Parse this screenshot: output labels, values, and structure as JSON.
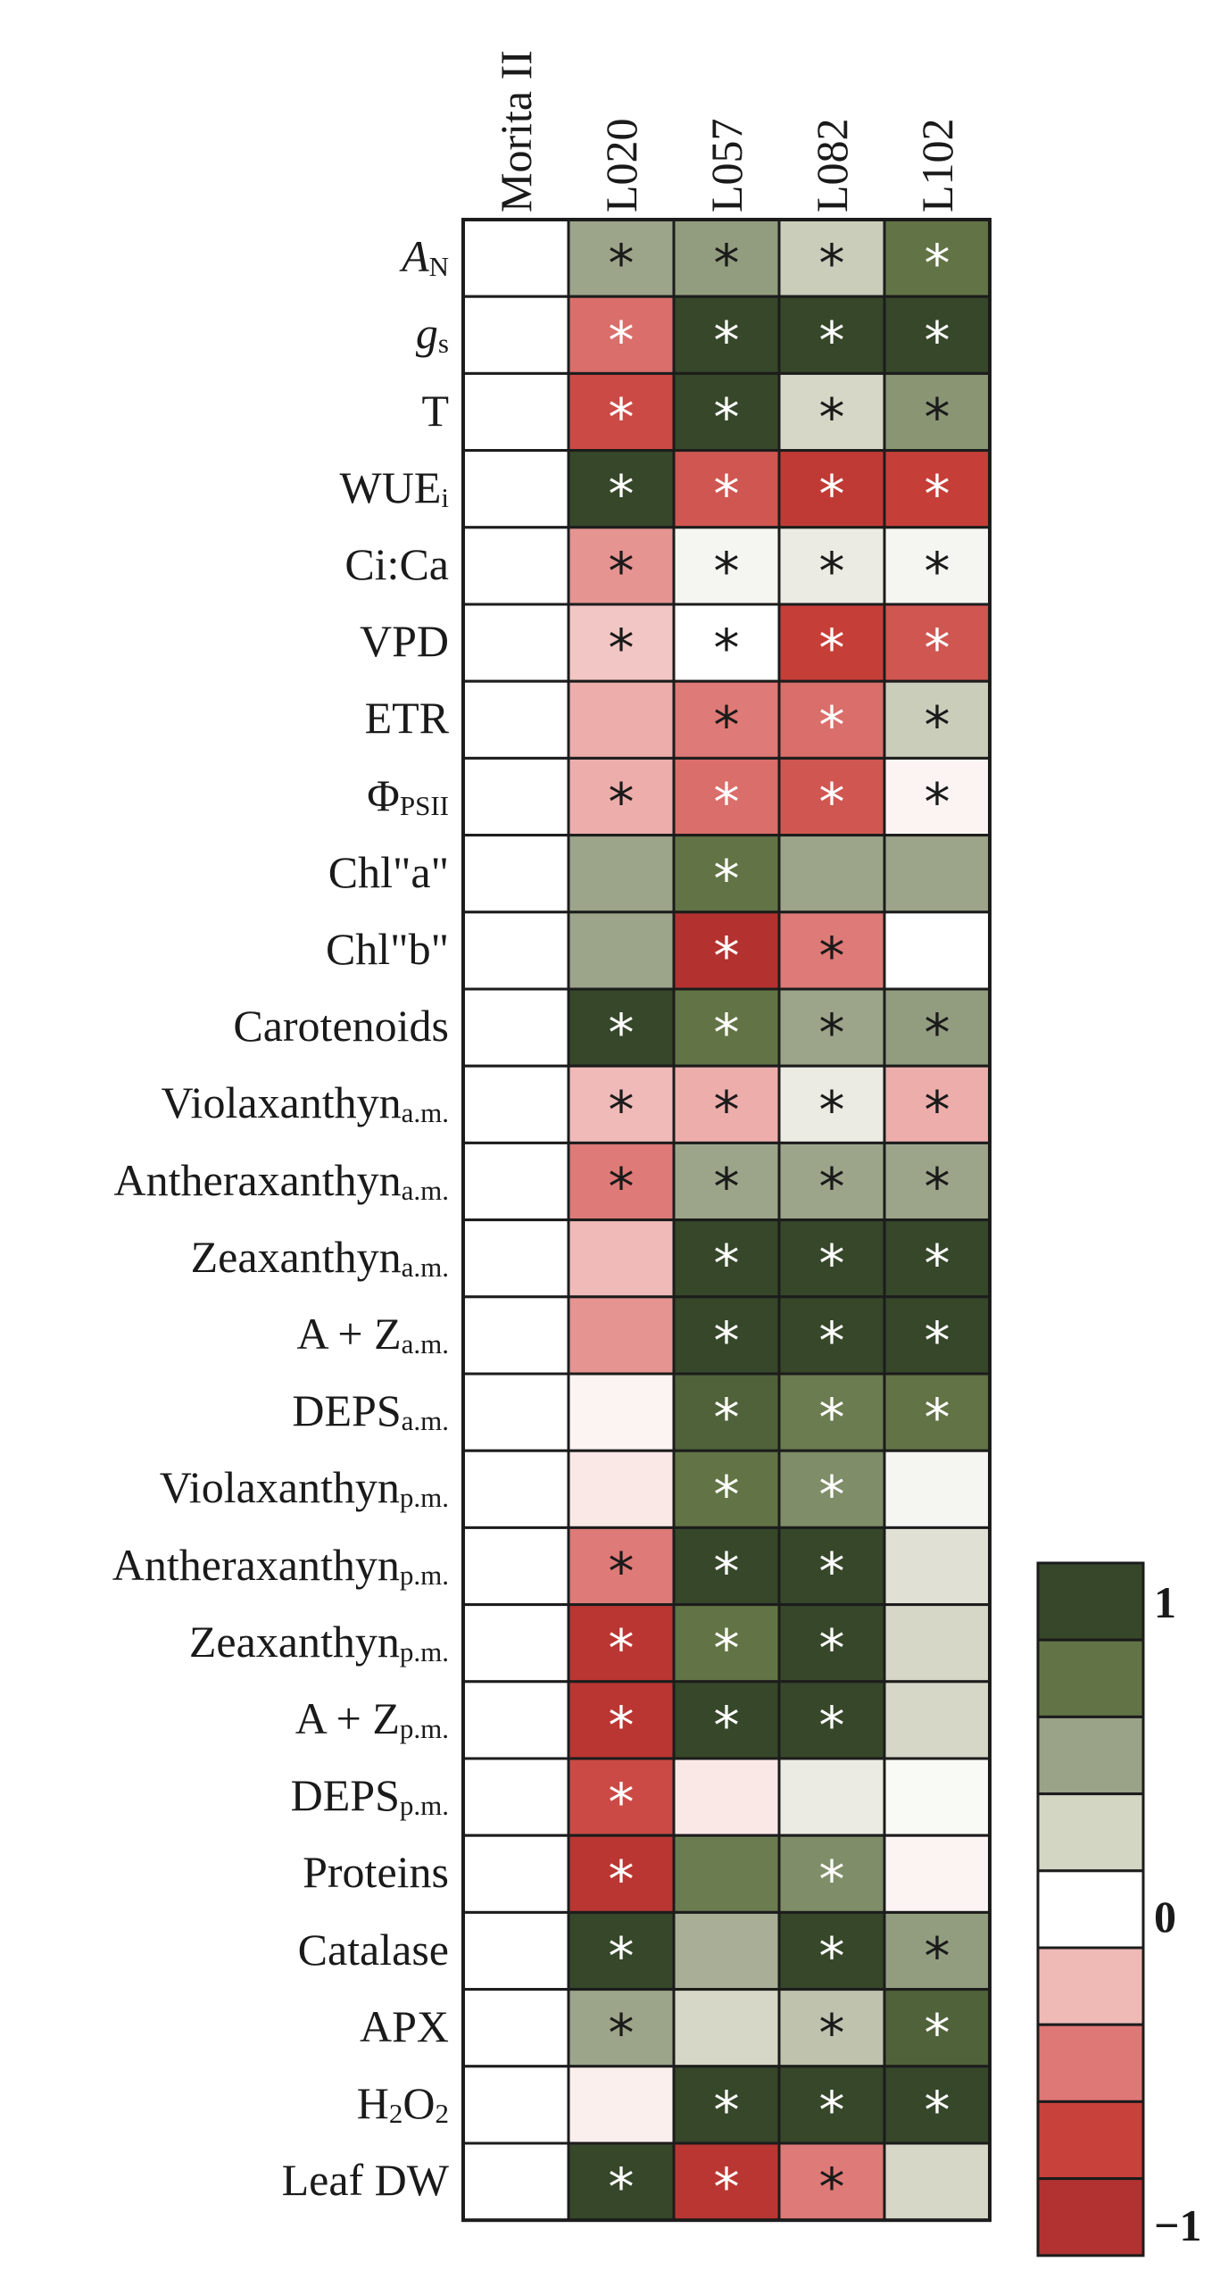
{
  "chart_data": {
    "type": "heatmap",
    "columns": [
      "Morita II",
      "L020",
      "L057",
      "L082",
      "L102"
    ],
    "rows": [
      {
        "label": "AN",
        "main": "A",
        "sub": "N",
        "italic": true,
        "values": [
          0,
          0.45,
          0.5,
          0.25,
          0.75
        ],
        "sig": [
          false,
          true,
          true,
          true,
          true
        ]
      },
      {
        "label": "gs",
        "main": "g",
        "sub": "s",
        "italic": true,
        "values": [
          0,
          -0.6,
          1.0,
          1.0,
          1.0
        ],
        "sig": [
          false,
          true,
          true,
          true,
          true
        ]
      },
      {
        "label": "T",
        "main": "T",
        "sub": "",
        "italic": false,
        "values": [
          0,
          -0.75,
          1.0,
          0.2,
          0.55
        ],
        "sig": [
          false,
          true,
          true,
          true,
          true
        ]
      },
      {
        "label": "WUEi",
        "main": "WUE",
        "sub": "i",
        "italic": false,
        "values": [
          0,
          1.0,
          -0.7,
          -0.85,
          -0.8
        ],
        "sig": [
          false,
          true,
          true,
          true,
          true
        ]
      },
      {
        "label": "Ci:Ca",
        "main": "Ci:Ca",
        "sub": "",
        "italic": false,
        "values": [
          0,
          -0.45,
          0.05,
          0.1,
          0.05
        ],
        "sig": [
          false,
          true,
          true,
          true,
          true
        ]
      },
      {
        "label": "VPD",
        "main": "VPD",
        "sub": "",
        "italic": false,
        "values": [
          0,
          -0.25,
          0,
          -0.8,
          -0.7
        ],
        "sig": [
          false,
          true,
          true,
          true,
          true
        ]
      },
      {
        "label": "ETR",
        "main": "ETR",
        "sub": "",
        "italic": false,
        "values": [
          0,
          -0.35,
          -0.55,
          -0.6,
          0.25
        ],
        "sig": [
          false,
          false,
          true,
          true,
          true
        ]
      },
      {
        "label": "ΦPSII",
        "main": "Φ",
        "sub": "PSII",
        "italic": false,
        "values": [
          0,
          -0.35,
          -0.6,
          -0.7,
          -0.05
        ],
        "sig": [
          false,
          true,
          true,
          true,
          true
        ]
      },
      {
        "label": "Chl\"a\"",
        "main": "Chl\"a\"",
        "sub": "",
        "italic": false,
        "values": [
          0,
          0.45,
          0.75,
          0.45,
          0.45
        ],
        "sig": [
          false,
          false,
          true,
          false,
          false
        ]
      },
      {
        "label": "Chl\"b\"",
        "main": "Chl\"b\"",
        "sub": "",
        "italic": false,
        "values": [
          0,
          0.45,
          -0.95,
          -0.55,
          0
        ],
        "sig": [
          false,
          false,
          true,
          true,
          false
        ]
      },
      {
        "label": "Carotenoids",
        "main": "Carotenoids",
        "sub": "",
        "italic": false,
        "values": [
          0,
          1.0,
          0.75,
          0.45,
          0.5
        ],
        "sig": [
          false,
          true,
          true,
          true,
          true
        ]
      },
      {
        "label": "Violaxanthyna.m.",
        "main": "Violaxanthyn",
        "sub": "a.m.",
        "italic": false,
        "values": [
          0,
          -0.3,
          -0.35,
          0.1,
          -0.35
        ],
        "sig": [
          false,
          true,
          true,
          true,
          true
        ]
      },
      {
        "label": "Antheraxanthyna.m.",
        "main": "Antheraxanthyn",
        "sub": "a.m.",
        "italic": false,
        "values": [
          0,
          -0.55,
          0.45,
          0.45,
          0.45
        ],
        "sig": [
          false,
          true,
          true,
          true,
          true
        ]
      },
      {
        "label": "Zeaxanthyna.m.",
        "main": "Zeaxanthyn",
        "sub": "a.m.",
        "italic": false,
        "values": [
          0,
          -0.3,
          1.0,
          1.0,
          1.0
        ],
        "sig": [
          false,
          false,
          true,
          true,
          true
        ]
      },
      {
        "label": "A + Za.m.",
        "main": "A + Z",
        "sub": "a.m.",
        "italic": false,
        "values": [
          0,
          -0.45,
          1.0,
          1.0,
          1.0
        ],
        "sig": [
          false,
          false,
          true,
          true,
          true
        ]
      },
      {
        "label": "DEPSa.m.",
        "main": "DEPS",
        "sub": "a.m.",
        "italic": false,
        "values": [
          0,
          -0.05,
          0.85,
          0.7,
          0.75
        ],
        "sig": [
          false,
          false,
          true,
          true,
          true
        ]
      },
      {
        "label": "Violaxanthynp.m.",
        "main": "Violaxanthyn",
        "sub": "p.m.",
        "italic": false,
        "values": [
          0,
          -0.1,
          0.75,
          0.6,
          0.05
        ],
        "sig": [
          false,
          false,
          true,
          true,
          false
        ]
      },
      {
        "label": "Antheraxanthynp.m.",
        "main": "Antheraxanthyn",
        "sub": "p.m.",
        "italic": false,
        "values": [
          0,
          -0.55,
          1.0,
          1.0,
          0.15
        ],
        "sig": [
          false,
          true,
          true,
          true,
          false
        ]
      },
      {
        "label": "Zeaxanthynp.m.",
        "main": "Zeaxanthyn",
        "sub": "p.m.",
        "italic": false,
        "values": [
          0,
          -0.9,
          0.75,
          1.0,
          0.2
        ],
        "sig": [
          false,
          true,
          true,
          true,
          false
        ]
      },
      {
        "label": "A + Zp.m.",
        "main": "A + Z",
        "sub": "p.m.",
        "italic": false,
        "values": [
          0,
          -0.9,
          1.0,
          1.0,
          0.2
        ],
        "sig": [
          false,
          true,
          true,
          true,
          false
        ]
      },
      {
        "label": "DEPSp.m.",
        "main": "DEPS",
        "sub": "p.m.",
        "italic": false,
        "values": [
          0,
          -0.75,
          -0.1,
          0.1,
          0.03
        ],
        "sig": [
          false,
          true,
          false,
          false,
          false
        ]
      },
      {
        "label": "Proteins",
        "main": "Proteins",
        "sub": "",
        "italic": false,
        "values": [
          0,
          -0.9,
          0.7,
          0.6,
          -0.05
        ],
        "sig": [
          false,
          true,
          false,
          true,
          false
        ]
      },
      {
        "label": "Catalase",
        "main": "Catalase",
        "sub": "",
        "italic": false,
        "values": [
          0,
          1.0,
          0.4,
          1.0,
          0.5
        ],
        "sig": [
          false,
          true,
          false,
          true,
          true
        ]
      },
      {
        "label": "APX",
        "main": "APX",
        "sub": "",
        "italic": false,
        "values": [
          0,
          0.45,
          0.2,
          0.3,
          0.85
        ],
        "sig": [
          false,
          true,
          false,
          true,
          true
        ]
      },
      {
        "label": "H2O2",
        "main": "H",
        "sub": "2",
        "main2": "O",
        "sub2": "2",
        "italic": false,
        "values": [
          0,
          -0.07,
          1.0,
          1.0,
          1.0
        ],
        "sig": [
          false,
          false,
          true,
          true,
          true
        ]
      },
      {
        "label": "Leaf DW",
        "main": "Leaf DW",
        "sub": "",
        "italic": false,
        "values": [
          0,
          1.0,
          -0.9,
          -0.55,
          0.2
        ],
        "sig": [
          false,
          true,
          true,
          true,
          false
        ]
      }
    ],
    "scale": {
      "min": -1,
      "max": 1
    },
    "legend": {
      "ticks": [
        "1",
        "0",
        "−1"
      ],
      "tick_values": [
        1,
        0,
        -1
      ],
      "colors": [
        "#36472a",
        "#627445",
        "#9aa388",
        "#d4d6c4",
        "#ffffff",
        "#efb9b6",
        "#de7876",
        "#c9413b",
        "#b23232"
      ]
    },
    "sig_marker": "*"
  }
}
